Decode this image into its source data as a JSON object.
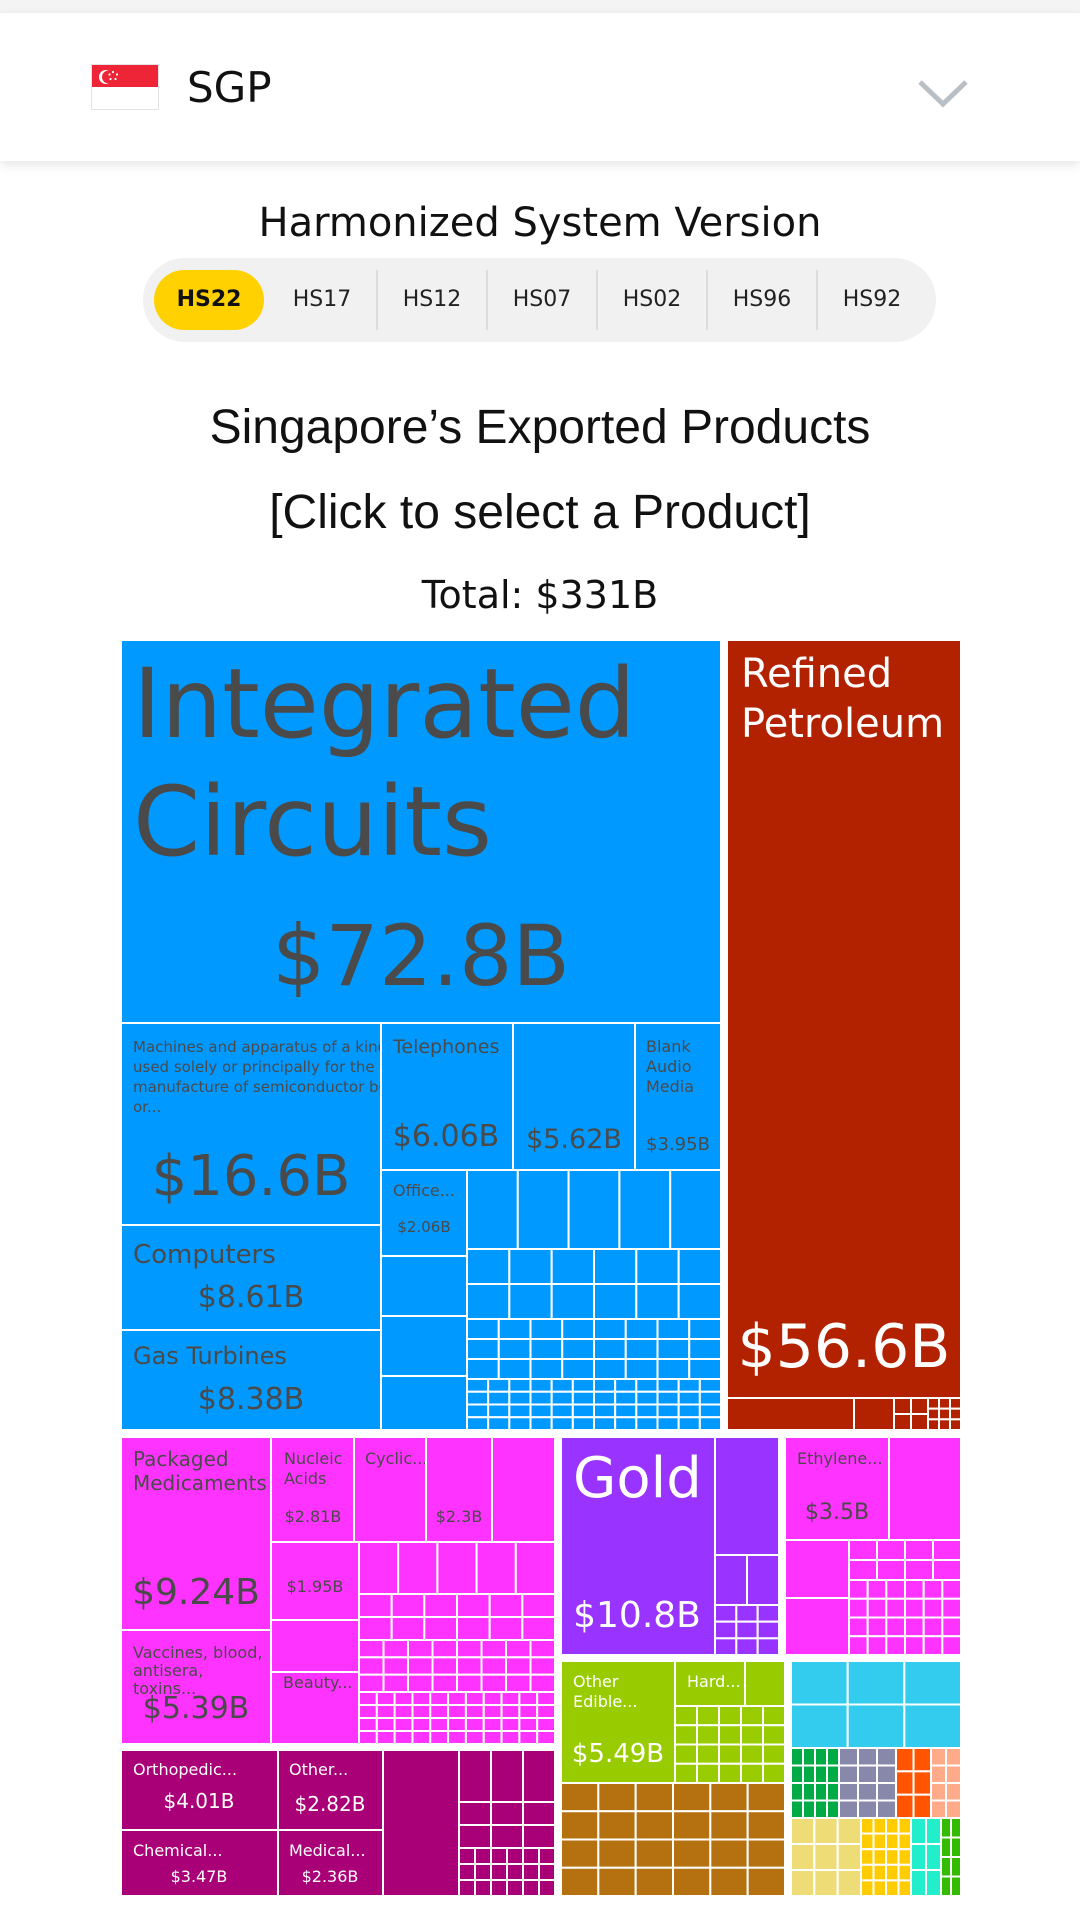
{
  "header": {
    "country_code": "SGP",
    "flag_icon": "singapore-flag-icon",
    "dropdown_icon": "chevron-down-icon"
  },
  "hs_selector": {
    "title": "Harmonized System Version",
    "versions": [
      "HS22",
      "HS17",
      "HS12",
      "HS07",
      "HS02",
      "HS96",
      "HS92"
    ],
    "selected": "HS22"
  },
  "chart_title": "Singapore’s Exported Products",
  "chart_subtitle": "[Click to select a Product]",
  "total_label": "Total: $331B",
  "colors": {
    "machinery": "#0099ff",
    "minerals": "#b22200",
    "chemicals": "#ff33ff",
    "metals": "#9933ff",
    "vegetables": "#99cc00",
    "instruments": "#aa0077"
  },
  "chart_data": {
    "type": "treemap",
    "total": "$331B",
    "items": [
      {
        "name": "Integrated Circuits",
        "value_label": "$72.8B",
        "value": 72.8
      },
      {
        "name": "Refined Petroleum",
        "value_label": "$56.6B",
        "value": 56.6
      },
      {
        "name": "Machines and apparatus of a kind used solely or principally for the manufacture of semiconductor boules or...",
        "value_label": "$16.6B",
        "value": 16.6
      },
      {
        "name": "Telephones",
        "value_label": "$6.06B",
        "value": 6.06
      },
      {
        "name": "",
        "value_label": "$5.62B",
        "value": 5.62
      },
      {
        "name": "Blank Audio Media",
        "value_label": "$3.95B",
        "value": 3.95
      },
      {
        "name": "Office...",
        "value_label": "$2.06B",
        "value": 2.06
      },
      {
        "name": "Computers",
        "value_label": "$8.61B",
        "value": 8.61
      },
      {
        "name": "Gas Turbines",
        "value_label": "$8.38B",
        "value": 8.38
      },
      {
        "name": "Packaged Medicaments",
        "value_label": "$9.24B",
        "value": 9.24
      },
      {
        "name": "Nucleic Acids",
        "value_label": "$2.81B",
        "value": 2.81
      },
      {
        "name": "Cyclic...",
        "value_label": "",
        "value": null
      },
      {
        "name": "",
        "value_label": "$2.3B",
        "value": 2.3
      },
      {
        "name": "",
        "value_label": "$1.95B",
        "value": 1.95
      },
      {
        "name": "Beauty...",
        "value_label": "",
        "value": null
      },
      {
        "name": "Vaccines, blood, antisera, toxins...",
        "value_label": "$5.39B",
        "value": 5.39
      },
      {
        "name": "Gold",
        "value_label": "$10.8B",
        "value": 10.8
      },
      {
        "name": "Ethylene...",
        "value_label": "$3.5B",
        "value": 3.5
      },
      {
        "name": "Other Edible...",
        "value_label": "$5.49B",
        "value": 5.49
      },
      {
        "name": "Hard...",
        "value_label": "",
        "value": null
      },
      {
        "name": "Orthopedic...",
        "value_label": "$4.01B",
        "value": 4.01
      },
      {
        "name": "Other...",
        "value_label": "$2.82B",
        "value": 2.82
      },
      {
        "name": "Chemical...",
        "value_label": "$3.47B",
        "value": 3.47
      },
      {
        "name": "Medical...",
        "value_label": "$2.36B",
        "value": 2.36
      }
    ]
  }
}
